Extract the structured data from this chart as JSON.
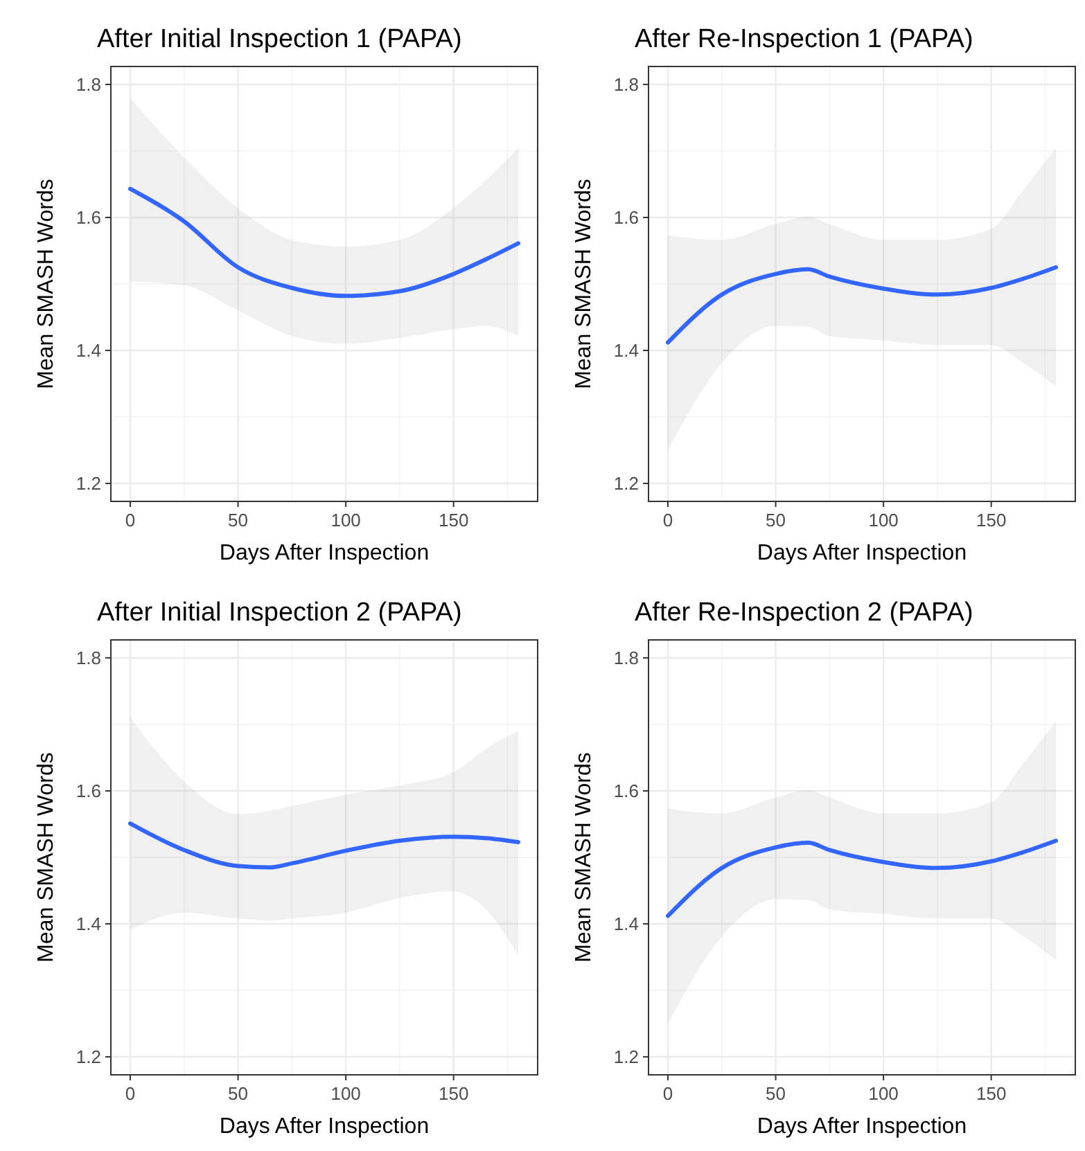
{
  "chart_data": [
    {
      "type": "line",
      "title": "After Initial Inspection 1 (PAPA)",
      "xlabel": "Days After Inspection",
      "ylabel": "Mean SMASH Words",
      "x": [
        0,
        25,
        50,
        75,
        100,
        125,
        150,
        165,
        180
      ],
      "xlim": [
        -9,
        189
      ],
      "xticks": [
        0,
        50,
        100,
        150
      ],
      "ylim": [
        1.173,
        1.827
      ],
      "yticks": [
        1.2,
        1.4,
        1.6,
        1.8
      ],
      "grid": true,
      "series": [
        {
          "color": "#3366ff",
          "values": [
            1.643,
            1.594,
            1.525,
            1.494,
            1.482,
            1.489,
            1.515,
            1.537,
            1.561
          ],
          "lower": [
            1.504,
            1.498,
            1.46,
            1.422,
            1.41,
            1.419,
            1.432,
            1.437,
            1.422
          ],
          "upper": [
            1.779,
            1.69,
            1.614,
            1.566,
            1.556,
            1.566,
            1.614,
            1.656,
            1.704
          ]
        }
      ]
    },
    {
      "type": "line",
      "title": "After Re-Inspection 1 (PAPA)",
      "xlabel": "Days After Inspection",
      "ylabel": "Mean SMASH Words",
      "x": [
        0,
        25,
        50,
        65,
        75,
        100,
        125,
        150,
        165,
        180
      ],
      "xlim": [
        -9,
        189
      ],
      "xticks": [
        0,
        50,
        100,
        150
      ],
      "ylim": [
        1.173,
        1.827
      ],
      "yticks": [
        1.2,
        1.4,
        1.6,
        1.8
      ],
      "grid": true,
      "series": [
        {
          "color": "#3366ff",
          "values": [
            1.412,
            1.484,
            1.515,
            1.522,
            1.511,
            1.493,
            1.484,
            1.494,
            1.508,
            1.525
          ],
          "lower": [
            1.25,
            1.381,
            1.437,
            1.436,
            1.422,
            1.415,
            1.408,
            1.408,
            1.381,
            1.346
          ],
          "upper": [
            1.573,
            1.566,
            1.59,
            1.601,
            1.59,
            1.566,
            1.566,
            1.583,
            1.642,
            1.704
          ]
        }
      ]
    },
    {
      "type": "line",
      "title": "After Initial Inspection 2 (PAPA)",
      "xlabel": "Days After Inspection",
      "ylabel": "Mean SMASH Words",
      "x": [
        0,
        25,
        50,
        65,
        75,
        100,
        125,
        150,
        165,
        180
      ],
      "xlim": [
        -9,
        189
      ],
      "xticks": [
        0,
        50,
        100,
        150
      ],
      "ylim": [
        1.173,
        1.827
      ],
      "yticks": [
        1.2,
        1.4,
        1.6,
        1.8
      ],
      "grid": true,
      "series": [
        {
          "color": "#3366ff",
          "values": [
            1.551,
            1.511,
            1.487,
            1.485,
            1.491,
            1.51,
            1.525,
            1.531,
            1.529,
            1.523
          ],
          "lower": [
            1.391,
            1.417,
            1.408,
            1.405,
            1.408,
            1.417,
            1.439,
            1.449,
            1.422,
            1.353
          ],
          "upper": [
            1.711,
            1.614,
            1.565,
            1.57,
            1.577,
            1.594,
            1.608,
            1.628,
            1.663,
            1.69
          ]
        }
      ]
    },
    {
      "type": "line",
      "title": "After Re-Inspection 2 (PAPA)",
      "xlabel": "Days After Inspection",
      "ylabel": "Mean SMASH Words",
      "x": [
        0,
        25,
        50,
        65,
        75,
        100,
        125,
        150,
        165,
        180
      ],
      "xlim": [
        -9,
        189
      ],
      "xticks": [
        0,
        50,
        100,
        150
      ],
      "ylim": [
        1.173,
        1.827
      ],
      "yticks": [
        1.2,
        1.4,
        1.6,
        1.8
      ],
      "grid": true,
      "series": [
        {
          "color": "#3366ff",
          "values": [
            1.412,
            1.484,
            1.515,
            1.522,
            1.511,
            1.493,
            1.484,
            1.494,
            1.508,
            1.525
          ],
          "lower": [
            1.25,
            1.381,
            1.437,
            1.436,
            1.422,
            1.415,
            1.408,
            1.408,
            1.381,
            1.346
          ],
          "upper": [
            1.573,
            1.566,
            1.59,
            1.601,
            1.59,
            1.566,
            1.566,
            1.583,
            1.642,
            1.704
          ]
        }
      ]
    }
  ]
}
